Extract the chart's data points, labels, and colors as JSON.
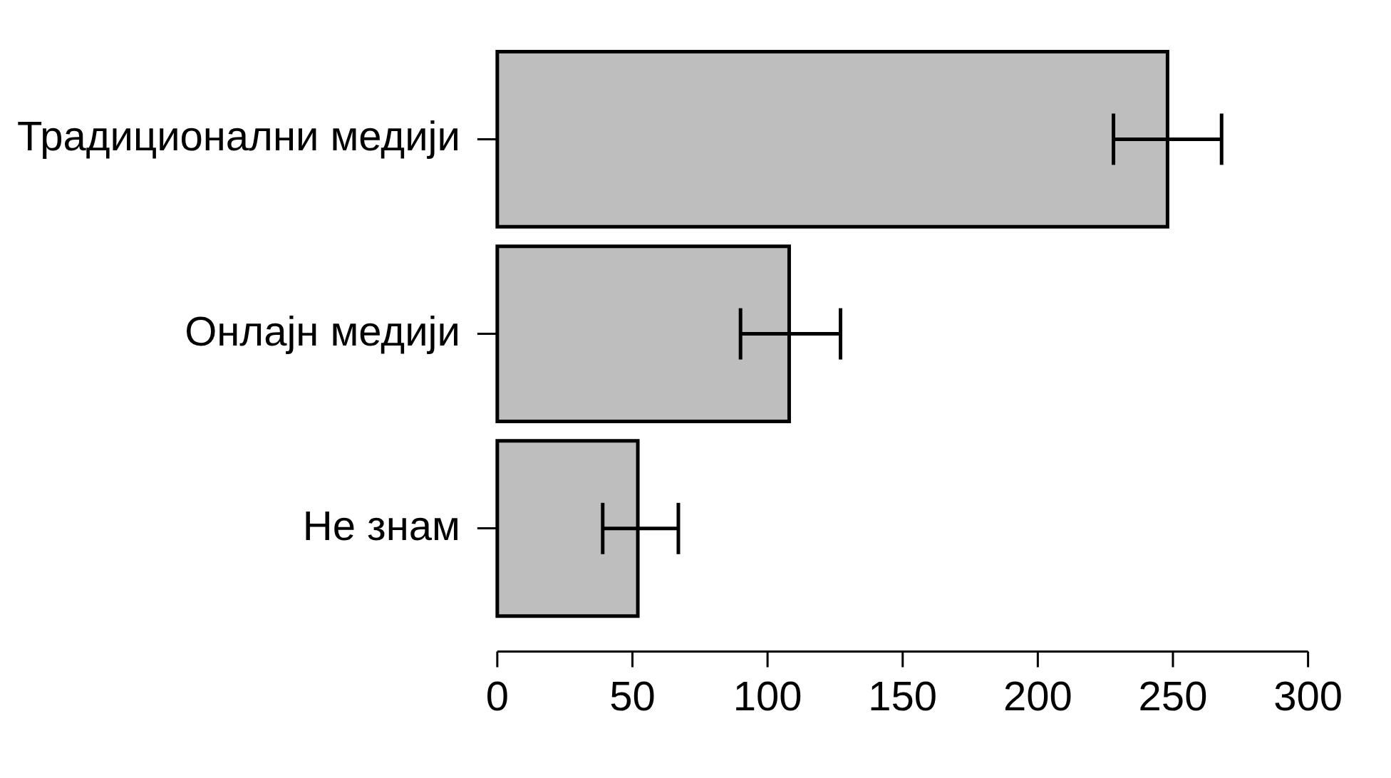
{
  "chart_data": {
    "type": "bar",
    "orientation": "horizontal",
    "categories": [
      "Традиционални медији",
      "Онлајн медији",
      "Не знам"
    ],
    "values": [
      248,
      108,
      52
    ],
    "errors": [
      [
        228,
        268
      ],
      [
        90,
        127
      ],
      [
        39,
        67
      ]
    ],
    "color": "#bebebe",
    "xlim": [
      0,
      300
    ],
    "xticks": [
      0,
      50,
      100,
      150,
      200,
      250,
      300
    ],
    "grid": false,
    "legend": false
  }
}
